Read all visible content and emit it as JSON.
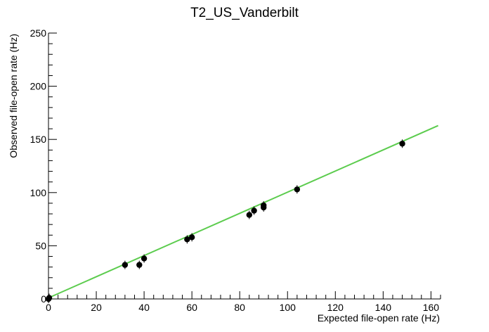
{
  "chart_data": {
    "type": "scatter",
    "title": "T2_US_Vanderbilt",
    "xlabel": "Expected file-open rate (Hz)",
    "ylabel": "Observed file-open rate (Hz)",
    "xlim": [
      0,
      164
    ],
    "ylim": [
      0,
      250
    ],
    "x_ticks": [
      0,
      20,
      40,
      60,
      80,
      100,
      120,
      140,
      160
    ],
    "y_ticks": [
      0,
      50,
      100,
      150,
      200,
      250
    ],
    "grid": false,
    "legend": "none",
    "points": [
      {
        "x": 0,
        "y": 0
      },
      {
        "x": 0.3,
        "y": 1
      },
      {
        "x": 32,
        "y": 32
      },
      {
        "x": 38,
        "y": 32
      },
      {
        "x": 40,
        "y": 38
      },
      {
        "x": 58,
        "y": 56
      },
      {
        "x": 60,
        "y": 58
      },
      {
        "x": 84,
        "y": 79
      },
      {
        "x": 86,
        "y": 83
      },
      {
        "x": 90,
        "y": 86
      },
      {
        "x": 90,
        "y": 88
      },
      {
        "x": 104,
        "y": 103
      },
      {
        "x": 148,
        "y": 146
      }
    ],
    "fit_line": {
      "x": [
        0,
        163
      ],
      "y": [
        1,
        163
      ],
      "color": "#5ccc4e"
    },
    "marker_color": "#000000"
  }
}
